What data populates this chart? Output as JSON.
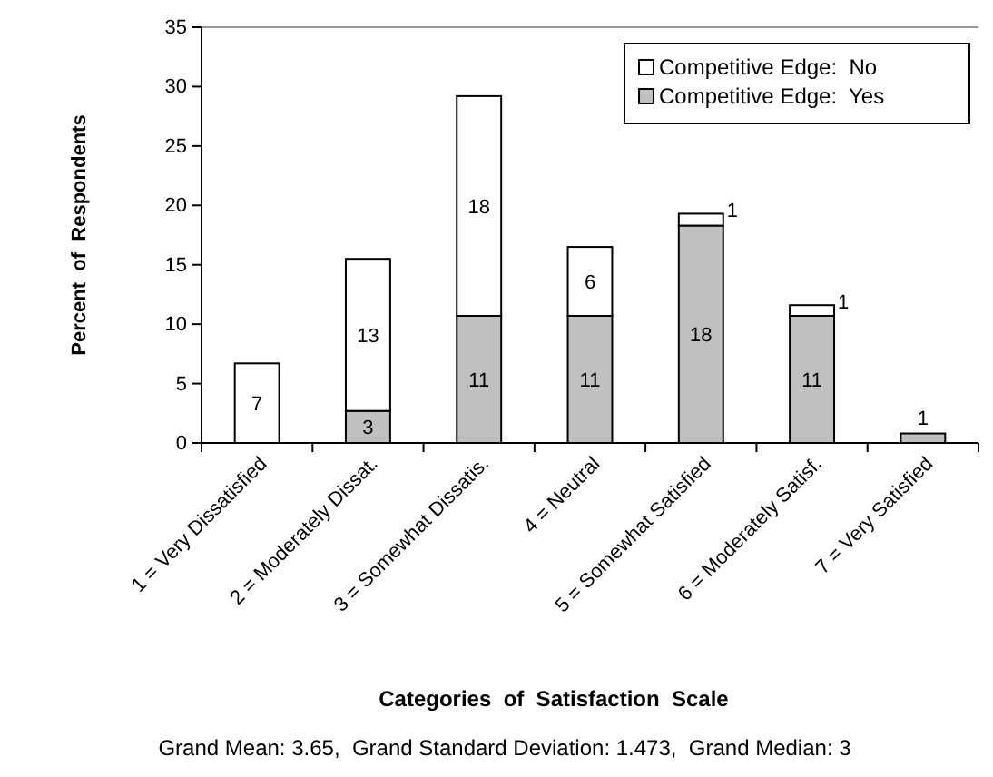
{
  "chart_data": {
    "type": "bar",
    "stacked": true,
    "xlabel": "Categories  of  Satisfaction  Scale",
    "ylabel": "Percent  of  Respondents",
    "categories": [
      "1 = Very Dissatisfied",
      "2 = Moderately Dissat.",
      "3 = Somewhat Dissatis.",
      "4 = Neutral",
      "5 = Somewhat Satisfied",
      "6 = Moderately Satisf.",
      "7 = Very Satisfied"
    ],
    "series": [
      {
        "name": "Competitive Edge:  Yes",
        "color": "#c0c0c0",
        "values": [
          0,
          2.7,
          10.7,
          10.7,
          18.3,
          10.7,
          0.8
        ],
        "value_labels": [
          null,
          "3",
          "11",
          "11",
          "18",
          "11",
          "1"
        ]
      },
      {
        "name": "Competitive Edge:  No",
        "color": "#ffffff",
        "values": [
          6.7,
          12.8,
          18.5,
          5.8,
          1.0,
          0.9,
          null
        ],
        "value_labels": [
          "7",
          "13",
          "18",
          "6",
          "1",
          "1",
          null
        ]
      }
    ],
    "ylim": [
      0,
      35
    ],
    "yticks": [
      0,
      5,
      10,
      15,
      20,
      25,
      30,
      35
    ],
    "legend": "top right",
    "annotations": [
      "Grand Mean: 3.65,  Grand Standard Deviation: 1.473,  Grand Median: 3"
    ]
  }
}
